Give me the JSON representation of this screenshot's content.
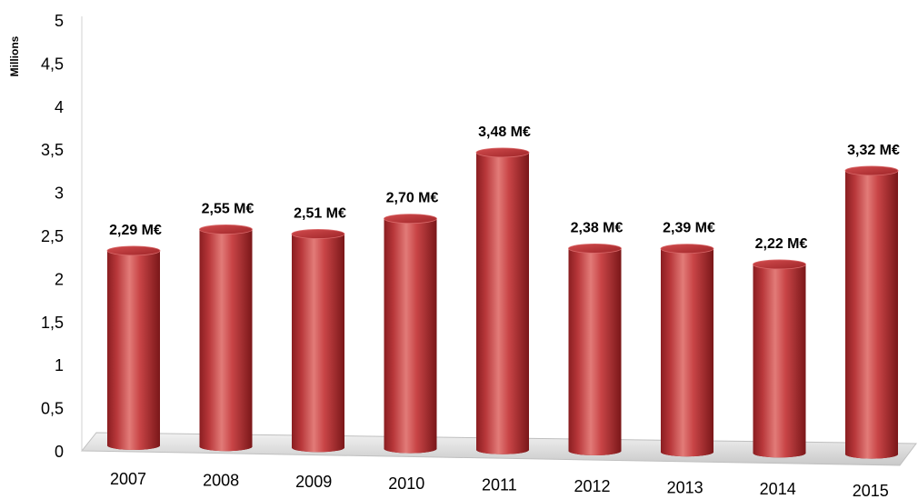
{
  "chart_data": {
    "type": "bar",
    "style": "3d-cylinder",
    "categories": [
      "2007",
      "2008",
      "2009",
      "2010",
      "2011",
      "2012",
      "2013",
      "2014",
      "2015"
    ],
    "values": [
      2.29,
      2.55,
      2.51,
      2.7,
      3.48,
      2.38,
      2.39,
      2.22,
      3.32
    ],
    "data_labels": [
      "2,29 M€",
      "2,55 M€",
      "2,51 M€",
      "2,70 M€",
      "3,48 M€",
      "2,38 M€",
      "2,39 M€",
      "2,22 M€",
      "3,32 M€"
    ],
    "yticks": [
      "0",
      "0,5",
      "1",
      "1,5",
      "2",
      "2,5",
      "3",
      "3,5",
      "4",
      "4,5",
      "5"
    ],
    "ylabel": "Millions",
    "xlabel": "",
    "ylim": [
      0,
      5
    ],
    "grid": false,
    "legend": "none",
    "colors": {
      "bar_main": "#c0393d",
      "bar_dark": "#7a1719",
      "bar_light": "#e07a78",
      "bar_top": "#b72f33",
      "floor": "#d9d9d9"
    }
  }
}
